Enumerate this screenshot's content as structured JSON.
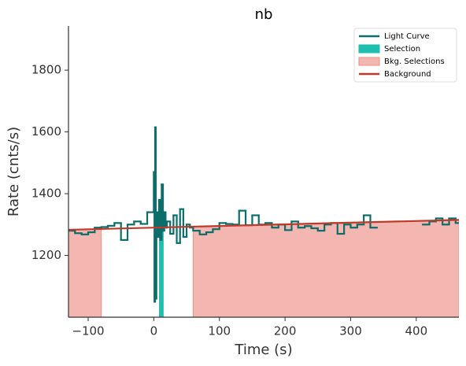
{
  "chart_data": {
    "type": "step",
    "title": "nb",
    "xlabel": "Time (s)",
    "ylabel": "Rate (cnts/s)",
    "xlim": [
      -130,
      465
    ],
    "ylim": [
      1000,
      1943
    ],
    "xticks": [
      {
        "value": -100,
        "label": "−100"
      },
      0,
      100,
      200,
      300,
      400
    ],
    "yticks": [
      1200,
      1400,
      1600,
      1800
    ],
    "legend": "upper right",
    "series": [
      {
        "name": "Light Curve",
        "color": "#0b6e6a",
        "x": [
          -130,
          -120,
          -110,
          -100,
          -90,
          -80,
          -70,
          -60,
          -50,
          -40,
          -30,
          -20,
          -10,
          0,
          1,
          2,
          3,
          4,
          6,
          8,
          10,
          12,
          14,
          16,
          18,
          20,
          25,
          30,
          35,
          40,
          45,
          50,
          55,
          60,
          70,
          80,
          90,
          100,
          110,
          120,
          130,
          140,
          150,
          160,
          170,
          180,
          190,
          200,
          210,
          220,
          230,
          240,
          250,
          260,
          270,
          280,
          290,
          300,
          310,
          320,
          330,
          340,
          410,
          420,
          430,
          440,
          450,
          460
        ],
        "values": [
          1280,
          1272,
          1268,
          1275,
          1290,
          1292,
          1296,
          1305,
          1250,
          1300,
          1310,
          1302,
          1340,
          1470,
          1050,
          1615,
          1060,
          1340,
          1260,
          1380,
          1250,
          1430,
          1280,
          1340,
          1290,
          1310,
          1270,
          1330,
          1240,
          1350,
          1260,
          1300,
          1290,
          1280,
          1268,
          1275,
          1285,
          1305,
          1302,
          1300,
          1345,
          1298,
          1330,
          1300,
          1305,
          1290,
          1300,
          1282,
          1310,
          1290,
          1295,
          1288,
          1280,
          1300,
          1305,
          1270,
          1300,
          1290,
          1300,
          1330,
          1290,
          null,
          1300,
          1310,
          1320,
          1300,
          1320,
          1305
        ]
      },
      {
        "name": "Background",
        "color": "#c0392b",
        "x": [
          -130,
          465
        ],
        "values": [
          1283,
          1315
        ]
      }
    ],
    "selection": {
      "name": "Selection",
      "color": "#1fbfb0",
      "ranges": [
        [
          8,
          15
        ]
      ]
    },
    "bkg_selections": {
      "name": "Bkg. Selections",
      "color": "#f4b6b0",
      "edge": "#ef8f83",
      "ranges": [
        [
          -130,
          -80
        ],
        [
          60,
          465
        ]
      ]
    }
  }
}
